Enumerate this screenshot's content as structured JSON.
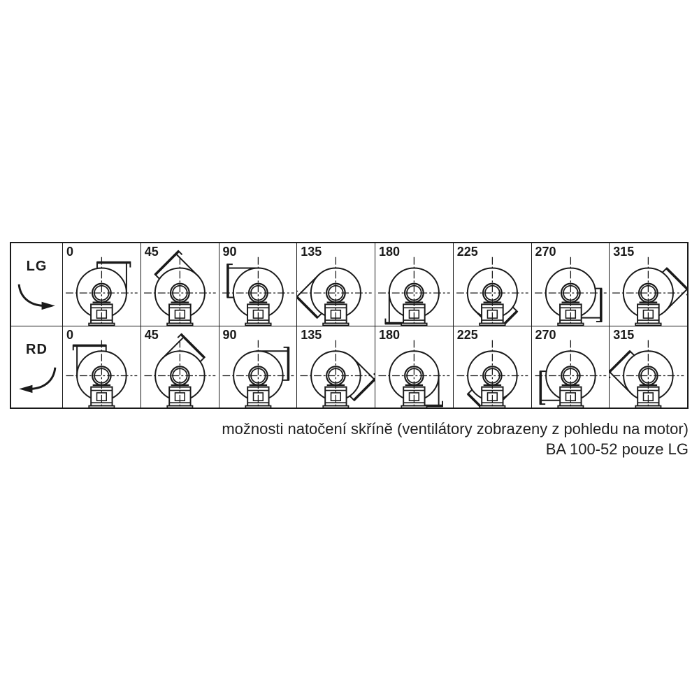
{
  "figure": {
    "rows": [
      {
        "id": "lg",
        "label": "LG",
        "rotation": "ccw",
        "angles": [
          "0",
          "45",
          "90",
          "135",
          "180",
          "225",
          "270",
          "315"
        ]
      },
      {
        "id": "rd",
        "label": "RD",
        "rotation": "cw",
        "angles": [
          "0",
          "45",
          "90",
          "135",
          "180",
          "225",
          "270",
          "315"
        ]
      }
    ]
  },
  "caption": {
    "line1": "možnosti natočení skříně (ventilátory zobrazeny z pohledu na motor)",
    "line2": "BA 100-52 pouze LG"
  },
  "colors": {
    "ink": "#1a1a1a",
    "background": "#ffffff"
  }
}
